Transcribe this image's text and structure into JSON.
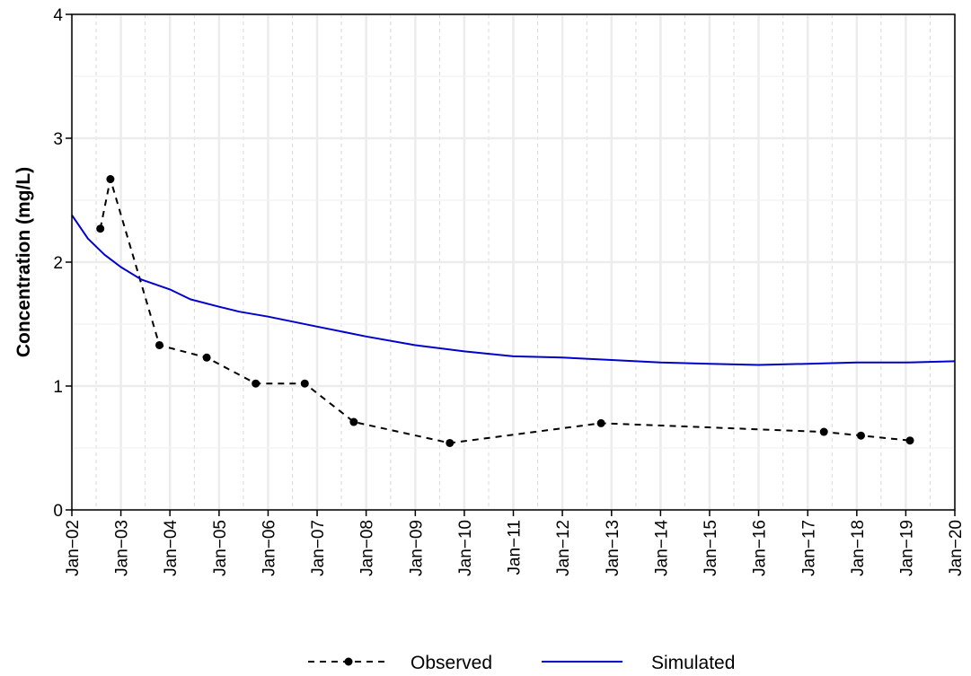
{
  "chart_data": {
    "type": "line",
    "title": "",
    "xlabel": "",
    "ylabel": "Concentration (mg/L)",
    "ylim": [
      0,
      4
    ],
    "y_ticks": [
      "0",
      "1",
      "2",
      "3",
      "4"
    ],
    "x_range": [
      "2002-01-01",
      "2020-01-01"
    ],
    "x_tick_dates": [
      "2002-01-01",
      "2003-01-01",
      "2004-01-01",
      "2005-01-01",
      "2006-01-01",
      "2007-01-01",
      "2008-01-01",
      "2009-01-01",
      "2010-01-01",
      "2011-01-01",
      "2012-01-01",
      "2013-01-01",
      "2014-01-01",
      "2015-01-01",
      "2016-01-01",
      "2017-01-01",
      "2018-01-01",
      "2019-01-01",
      "2020-01-01"
    ],
    "x_tick_labels": [
      "Jan−02",
      "Jan−03",
      "Jan−04",
      "Jan−05",
      "Jan−06",
      "Jan−07",
      "Jan−08",
      "Jan−09",
      "Jan−10",
      "Jan−11",
      "Jan−12",
      "Jan−13",
      "Jan−14",
      "Jan−15",
      "Jan−16",
      "Jan−17",
      "Jan−18",
      "Jan−19",
      "Jan−20"
    ],
    "grid": true,
    "legend_position": "bottom",
    "series": [
      {
        "name": "Observed",
        "color": "#000000",
        "line_style": "dashed",
        "markers": true,
        "x": [
          "2002-08-01",
          "2002-10-15",
          "2003-10-15",
          "2004-10-01",
          "2005-10-01",
          "2006-10-01",
          "2007-10-01",
          "2009-09-15",
          "2012-10-15",
          "2017-05-01",
          "2018-02-01",
          "2019-02-01"
        ],
        "y": [
          2.27,
          2.67,
          1.33,
          1.23,
          1.02,
          1.02,
          0.71,
          0.54,
          0.7,
          0.63,
          0.6,
          0.56
        ]
      },
      {
        "name": "Simulated",
        "color": "#0000CC",
        "line_style": "solid",
        "markers": false,
        "x": [
          "2002-01-01",
          "2002-05-01",
          "2002-09-01",
          "2003-01-01",
          "2003-06-01",
          "2004-01-01",
          "2004-06-01",
          "2005-01-01",
          "2005-06-01",
          "2006-01-01",
          "2007-01-01",
          "2008-01-01",
          "2009-01-01",
          "2010-01-01",
          "2011-01-01",
          "2012-01-01",
          "2013-01-01",
          "2014-01-01",
          "2015-01-01",
          "2016-01-01",
          "2017-01-01",
          "2018-01-01",
          "2019-01-01",
          "2020-01-01"
        ],
        "y": [
          2.38,
          2.19,
          2.06,
          1.96,
          1.86,
          1.78,
          1.7,
          1.64,
          1.6,
          1.56,
          1.48,
          1.4,
          1.33,
          1.28,
          1.24,
          1.23,
          1.21,
          1.19,
          1.18,
          1.17,
          1.18,
          1.19,
          1.19,
          1.2
        ]
      }
    ]
  }
}
